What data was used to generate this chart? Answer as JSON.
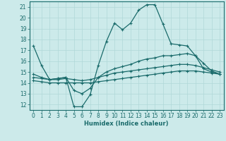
{
  "xlabel": "Humidex (Indice chaleur)",
  "xlim": [
    -0.5,
    23.5
  ],
  "ylim": [
    11.5,
    21.5
  ],
  "xticks": [
    0,
    1,
    2,
    3,
    4,
    5,
    6,
    7,
    8,
    9,
    10,
    11,
    12,
    13,
    14,
    15,
    16,
    17,
    18,
    19,
    20,
    21,
    22,
    23
  ],
  "yticks": [
    12,
    13,
    14,
    15,
    16,
    17,
    18,
    19,
    20,
    21
  ],
  "bg_color": "#cceaea",
  "line_color": "#1a6b6b",
  "grid_color": "#b0d8d8",
  "lines": [
    {
      "x": [
        0,
        1,
        2,
        3,
        4,
        5,
        6,
        7,
        8,
        9,
        10,
        11,
        12,
        13,
        14,
        15,
        16,
        17,
        18,
        19,
        20,
        21,
        22,
        23
      ],
      "y": [
        17.4,
        15.6,
        14.3,
        14.4,
        14.5,
        11.8,
        11.8,
        12.9,
        15.6,
        17.8,
        19.5,
        18.9,
        19.5,
        20.7,
        21.2,
        21.2,
        19.4,
        17.6,
        17.5,
        17.4,
        16.5,
        15.3,
        15.0,
        14.8
      ]
    },
    {
      "x": [
        0,
        1,
        2,
        3,
        4,
        5,
        6,
        7,
        8,
        9,
        10,
        11,
        12,
        13,
        14,
        15,
        16,
        17,
        18,
        19,
        20,
        21,
        22,
        23
      ],
      "y": [
        14.8,
        14.5,
        14.3,
        14.4,
        14.5,
        13.3,
        13.0,
        13.5,
        14.5,
        15.0,
        15.3,
        15.5,
        15.7,
        16.0,
        16.2,
        16.3,
        16.5,
        16.5,
        16.6,
        16.7,
        16.5,
        15.8,
        15.1,
        14.8
      ]
    },
    {
      "x": [
        0,
        1,
        2,
        3,
        4,
        5,
        6,
        7,
        8,
        9,
        10,
        11,
        12,
        13,
        14,
        15,
        16,
        17,
        18,
        19,
        20,
        21,
        22,
        23
      ],
      "y": [
        14.5,
        14.4,
        14.3,
        14.3,
        14.4,
        14.3,
        14.2,
        14.3,
        14.5,
        14.7,
        14.9,
        15.0,
        15.1,
        15.2,
        15.3,
        15.4,
        15.5,
        15.6,
        15.7,
        15.7,
        15.6,
        15.4,
        15.2,
        15.0
      ]
    },
    {
      "x": [
        0,
        1,
        2,
        3,
        4,
        5,
        6,
        7,
        8,
        9,
        10,
        11,
        12,
        13,
        14,
        15,
        16,
        17,
        18,
        19,
        20,
        21,
        22,
        23
      ],
      "y": [
        14.2,
        14.1,
        14.0,
        14.0,
        14.0,
        14.0,
        14.0,
        14.0,
        14.1,
        14.2,
        14.3,
        14.4,
        14.5,
        14.6,
        14.7,
        14.8,
        14.9,
        15.0,
        15.1,
        15.1,
        15.1,
        15.0,
        14.9,
        14.8
      ]
    }
  ]
}
